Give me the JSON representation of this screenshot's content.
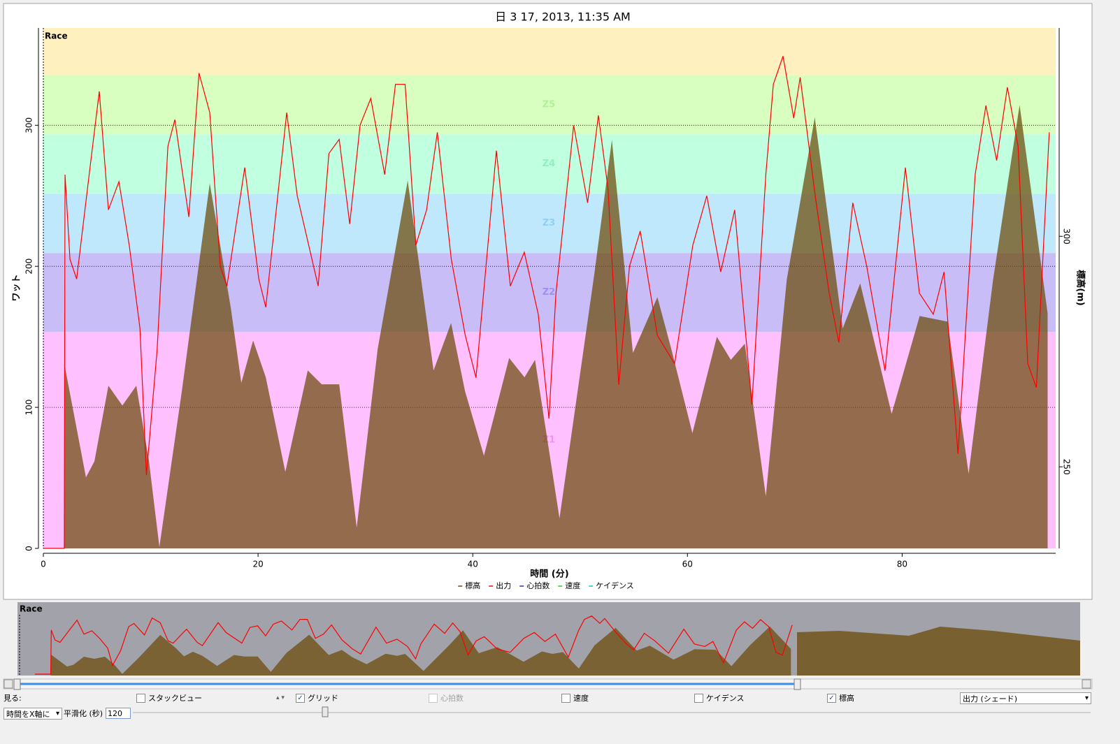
{
  "chart_data": {
    "type": "area-line",
    "title": "日 3 17, 2013, 11:35 AM",
    "section_label": "Race",
    "xlabel": "時間 (分)",
    "ylabel": "ワット",
    "y2label": "標高(m)",
    "xlim": [
      0,
      94.3
    ],
    "xticks": [
      0,
      20,
      40,
      60,
      80
    ],
    "ylim": [
      0,
      369
    ],
    "yticks": [
      0,
      100,
      200,
      300
    ],
    "y2lim": [
      232.3,
      345.2
    ],
    "y2ticks": [
      250,
      300
    ],
    "grid": true,
    "zones": [
      {
        "name": "Z1",
        "from": 0,
        "to": 153.5,
        "color": "#ffc0ff",
        "label_color": "#f090f0"
      },
      {
        "name": "Z2",
        "from": 153.5,
        "to": 209.4,
        "color": "#c9bdf8",
        "label_color": "#9f8ff0"
      },
      {
        "name": "Z3",
        "from": 209.4,
        "to": 251.5,
        "color": "#c0e8fc",
        "label_color": "#90d0f4"
      },
      {
        "name": "Z4",
        "from": 251.5,
        "to": 293.6,
        "color": "#c0ffe0",
        "label_color": "#90f0c0"
      },
      {
        "name": "Z5",
        "from": 293.6,
        "to": 335.6,
        "color": "#d8ffc0",
        "label_color": "#b0f098"
      },
      {
        "from": 335.6,
        "to": 369,
        "color": "#fff0c0"
      }
    ],
    "series": [
      {
        "name": "標高",
        "color": "#6b4a07",
        "axis": "y2",
        "kind": "area",
        "x": [
          1.95,
          3.97,
          4.76,
          6.06,
          7.36,
          8.66,
          9.84,
          10.81,
          12.9,
          15.5,
          17.46,
          18.44,
          19.54,
          20.72,
          22.54,
          24.63,
          25.93,
          27.56,
          29.19,
          31.14,
          33.94,
          36.35,
          37.98,
          39.28,
          41.04,
          43.39,
          44.82,
          45.8,
          48.08,
          51.34,
          52.96,
          54.92,
          57.2,
          58.5,
          60.46,
          62.74,
          64.04,
          65.34,
          67.3,
          69.25,
          71.86,
          74.46,
          76.09,
          79.02,
          81.63,
          84.23,
          86.19,
          88.47,
          90.94,
          93.55
        ],
        "values": [
          272.4,
          247.7,
          251.2,
          267.6,
          263.3,
          267.6,
          251.2,
          232.6,
          266.4,
          311.5,
          284.5,
          268.2,
          277.4,
          269.4,
          248.9,
          270.9,
          267.9,
          267.9,
          236.8,
          275.5,
          312.1,
          270.9,
          281.2,
          266.4,
          252.4,
          273.6,
          269.4,
          273.2,
          238.8,
          292.1,
          320.9,
          274.7,
          286.8,
          275.5,
          257.3,
          278.2,
          273.2,
          276.7,
          243.6,
          290.6,
          325.8,
          280,
          289.8,
          261.5,
          282.7,
          281.5,
          248.5,
          290.6,
          328.5,
          283.3
        ]
      },
      {
        "name": "出力",
        "color": "#ff0000",
        "kind": "line",
        "x": [
          0,
          1.95,
          2.02,
          2.48,
          3.1,
          4.3,
          5.21,
          6.06,
          7.04,
          8.0,
          9.0,
          9.6,
          10.6,
          11.6,
          12.25,
          13.55,
          14.5,
          15.5,
          16.48,
          17.1,
          18.76,
          20.07,
          20.72,
          22.67,
          23.65,
          25.6,
          26.6,
          27.56,
          28.54,
          29.5,
          30.5,
          31.8,
          32.8,
          33.7,
          34.7,
          35.7,
          36.7,
          38,
          39.3,
          40.3,
          42.2,
          43.5,
          44.8,
          46.1,
          47.1,
          47.75,
          49.4,
          50.7,
          51.7,
          52.6,
          53.6,
          54.6,
          55.6,
          57.2,
          58.8,
          60.5,
          61.8,
          63.1,
          64.4,
          66,
          67.3,
          68,
          68.9,
          69.9,
          70.5,
          71.9,
          73.2,
          74.1,
          75.4,
          76.7,
          78.4,
          80.3,
          81.6,
          82.9,
          83.9,
          85.2,
          86.8,
          87.8,
          88.8,
          89.8,
          90.8,
          91.7,
          92.5,
          93.7
        ],
        "values": [
          0,
          0,
          265,
          205,
          191,
          267,
          324,
          240,
          260,
          215,
          156,
          52,
          141,
          285,
          304,
          235,
          337,
          309,
          200,
          186,
          270,
          191,
          171,
          309,
          250,
          186,
          280,
          290,
          230,
          300,
          319,
          265,
          329,
          329,
          215,
          240,
          295,
          205,
          151,
          121,
          282,
          186,
          210,
          166,
          92,
          181,
          300,
          245,
          307,
          255,
          116,
          200,
          225,
          151,
          131,
          215,
          250,
          196,
          240,
          102,
          265,
          329,
          349,
          305,
          334,
          250,
          181,
          146,
          245,
          200,
          126,
          270,
          181,
          166,
          196,
          67,
          265,
          314,
          275,
          327,
          285,
          131,
          114,
          295
        ]
      }
    ],
    "legend_extra": [
      {
        "name": "心拍数",
        "color": "#3030c0"
      },
      {
        "name": "速度",
        "color": "#20d020"
      },
      {
        "name": "ケイデンス",
        "color": "#20c0d0"
      }
    ]
  },
  "controls": {
    "view_label": "見る:",
    "checkboxes": [
      {
        "label": "スタックビュー",
        "checked": false,
        "enabled": true
      },
      {
        "label": "グリッド",
        "checked": true,
        "enabled": true
      },
      {
        "label": "心拍数",
        "checked": false,
        "enabled": false
      },
      {
        "label": "速度",
        "checked": false,
        "enabled": true
      },
      {
        "label": "ケイデンス",
        "checked": false,
        "enabled": true
      },
      {
        "label": "標高",
        "checked": true,
        "enabled": true
      }
    ],
    "shade_dropdown": "出力 (シェード)",
    "xaxis_dropdown": "時間をX軸に",
    "smoothing_label": "平滑化 (秒)",
    "smoothing_value": "120"
  }
}
